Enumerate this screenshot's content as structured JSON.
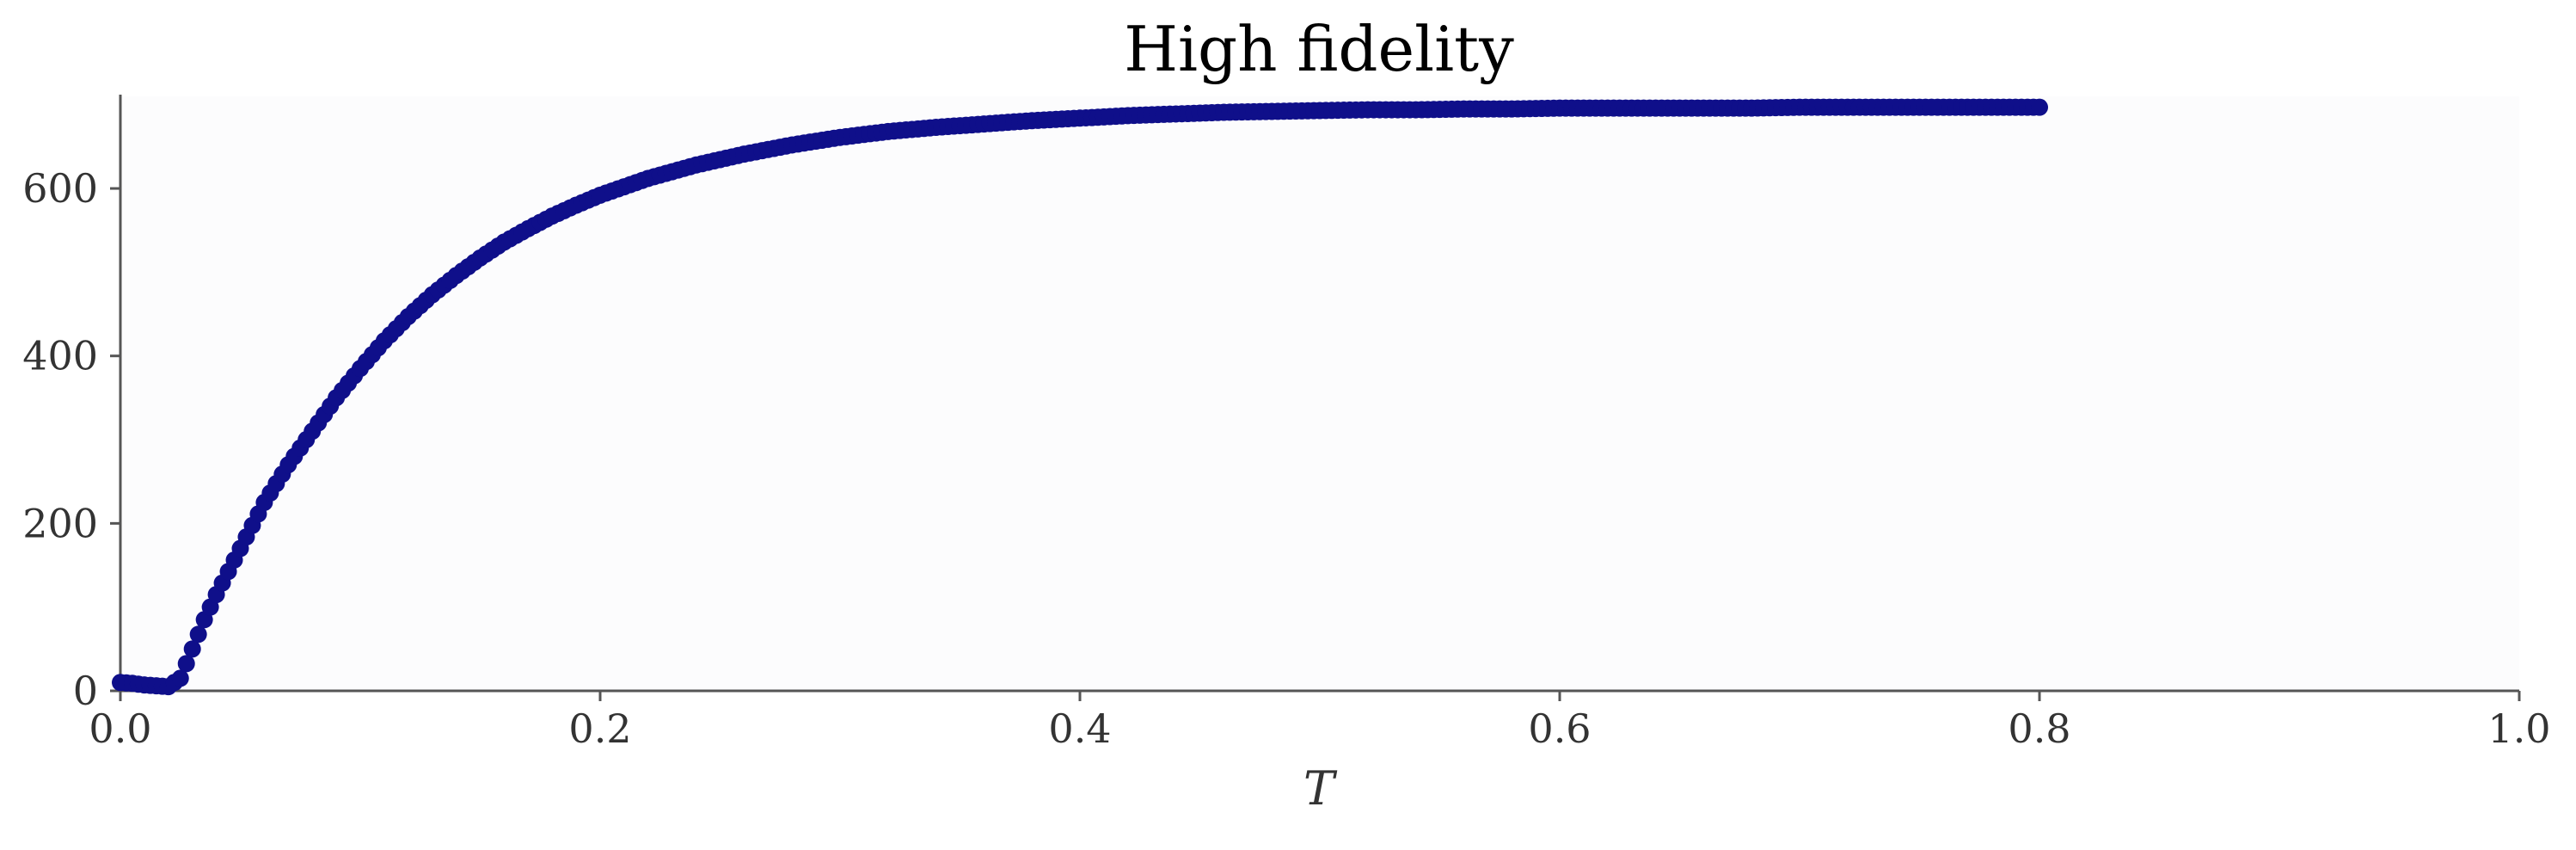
{
  "chart_data": {
    "type": "scatter",
    "title": "High fidelity",
    "xlabel": "T",
    "ylabel": "",
    "xlim": [
      0.0,
      1.0
    ],
    "ylim": [
      0,
      710
    ],
    "x_ticks": [
      "0.0",
      "0.2",
      "0.4",
      "0.6",
      "0.8",
      "1.0"
    ],
    "y_ticks": [
      "0",
      "200",
      "400",
      "600"
    ],
    "grid": false,
    "legend": "none",
    "colors": {
      "marker": "#0f0f8a",
      "axes": "#555555",
      "plot_bg": "#fcfcfd",
      "text": "#333333"
    },
    "series": [
      {
        "x": [
          0.0,
          0.005,
          0.01,
          0.015,
          0.02,
          0.025,
          0.03,
          0.035,
          0.04,
          0.05,
          0.06,
          0.07,
          0.08,
          0.09,
          0.1,
          0.11,
          0.12,
          0.13,
          0.14,
          0.15,
          0.16,
          0.17,
          0.18,
          0.19,
          0.2,
          0.22,
          0.24,
          0.26,
          0.28,
          0.3,
          0.32,
          0.34,
          0.36,
          0.38,
          0.4,
          0.42,
          0.44,
          0.46,
          0.48,
          0.5,
          0.52,
          0.54,
          0.56,
          0.58,
          0.6,
          0.62,
          0.64,
          0.66,
          0.68,
          0.7,
          0.72,
          0.74,
          0.76,
          0.78,
          0.8
        ],
        "y": [
          10,
          9,
          7,
          6,
          5,
          15,
          50,
          85,
          115,
          170,
          225,
          270,
          310,
          350,
          385,
          418,
          447,
          473,
          496,
          517,
          536,
          552,
          567,
          580,
          592,
          612,
          628,
          641,
          652,
          661,
          668,
          673,
          677,
          681,
          684,
          687,
          689,
          691,
          692,
          693,
          694,
          694,
          695,
          695,
          696,
          696,
          696,
          696,
          696,
          697,
          697,
          697,
          697,
          697,
          697
        ]
      }
    ]
  }
}
